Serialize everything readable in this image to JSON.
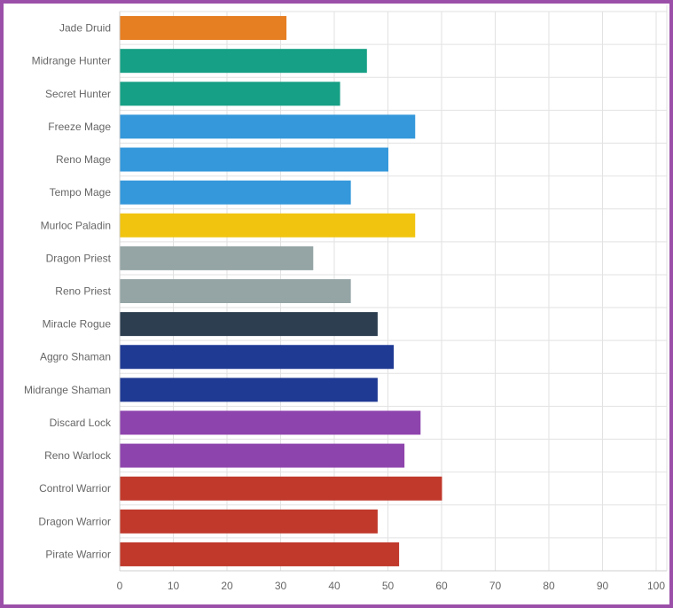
{
  "chart_data": {
    "type": "bar",
    "orientation": "horizontal",
    "categories": [
      "Jade Druid",
      "Midrange Hunter",
      "Secret Hunter",
      "Freeze Mage",
      "Reno Mage",
      "Tempo Mage",
      "Murloc Paladin",
      "Dragon Priest",
      "Reno Priest",
      "Miracle Rogue",
      "Aggro Shaman",
      "Midrange Shaman",
      "Discard Lock",
      "Reno Warlock",
      "Control Warrior",
      "Dragon Warrior",
      "Pirate Warrior"
    ],
    "values": [
      31,
      46,
      41,
      55,
      50,
      43,
      55,
      36,
      43,
      48,
      51,
      48,
      56,
      53,
      60,
      48,
      52
    ],
    "colors": [
      "#e67e22",
      "#16a085",
      "#16a085",
      "#3498db",
      "#3498db",
      "#3498db",
      "#f1c40f",
      "#95a5a6",
      "#95a5a6",
      "#2c3e50",
      "#1f3a93",
      "#1f3a93",
      "#8e44ad",
      "#8e44ad",
      "#c0392b",
      "#c0392b",
      "#c0392b"
    ],
    "xlim": [
      0,
      100
    ],
    "xticks": [
      0,
      10,
      20,
      30,
      40,
      50,
      60,
      70,
      80,
      90,
      100
    ],
    "title": "",
    "xlabel": "",
    "ylabel": "",
    "grid": true,
    "legend": "none"
  },
  "frame_color": "#9b4fa8"
}
